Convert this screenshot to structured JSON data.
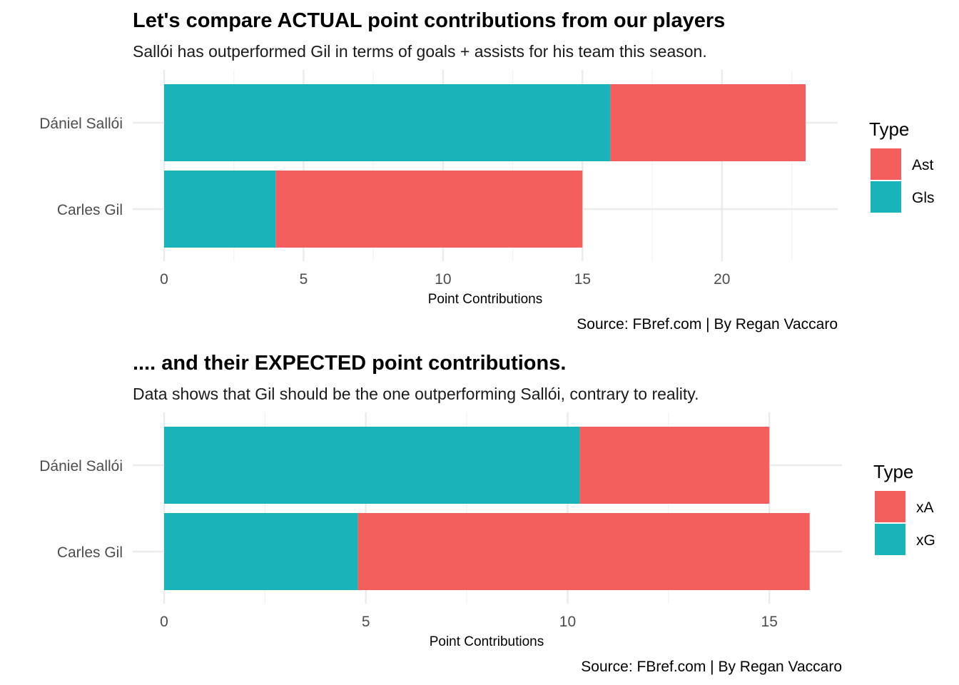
{
  "chart_data": [
    {
      "type": "bar",
      "orientation": "horizontal",
      "stacked": true,
      "title": "Let's compare ACTUAL point contributions from our players",
      "subtitle": "Sallói has outperformed Gil in terms of goals + assists for his team this season.",
      "caption": "Source: FBref.com | By Regan Vaccaro",
      "xlabel": "Point Contributions",
      "ylabel": "",
      "xlim": [
        0,
        24.15
      ],
      "xticks": [
        0,
        5,
        10,
        15,
        20
      ],
      "categories": [
        "Dániel Sallói",
        "Carles Gil"
      ],
      "legend": {
        "title": "Type",
        "position": "right",
        "entries": [
          "Ast",
          "Gls"
        ]
      },
      "series": [
        {
          "name": "Gls",
          "color": "#19b4b9",
          "values": [
            16,
            4
          ]
        },
        {
          "name": "Ast",
          "color": "#f25f5c",
          "values": [
            7,
            11
          ]
        }
      ],
      "grid": true
    },
    {
      "type": "bar",
      "orientation": "horizontal",
      "stacked": true,
      "title": ".... and their EXPECTED point contributions.",
      "subtitle": "Data shows that Gil should be the one outperforming Sallói, contrary to reality.",
      "caption": "Source: FBref.com | By Regan Vaccaro",
      "xlabel": "Point Contributions",
      "ylabel": "",
      "xlim": [
        0,
        16.8
      ],
      "xticks": [
        0,
        5,
        10,
        15
      ],
      "categories": [
        "Dániel Sallói",
        "Carles Gil"
      ],
      "legend": {
        "title": "Type",
        "position": "right",
        "entries": [
          "xA",
          "xG"
        ]
      },
      "series": [
        {
          "name": "xG",
          "color": "#19b4b9",
          "values": [
            10.3,
            4.8
          ]
        },
        {
          "name": "xA",
          "color": "#f25f5c",
          "values": [
            4.7,
            11.2
          ]
        }
      ],
      "grid": true
    }
  ]
}
